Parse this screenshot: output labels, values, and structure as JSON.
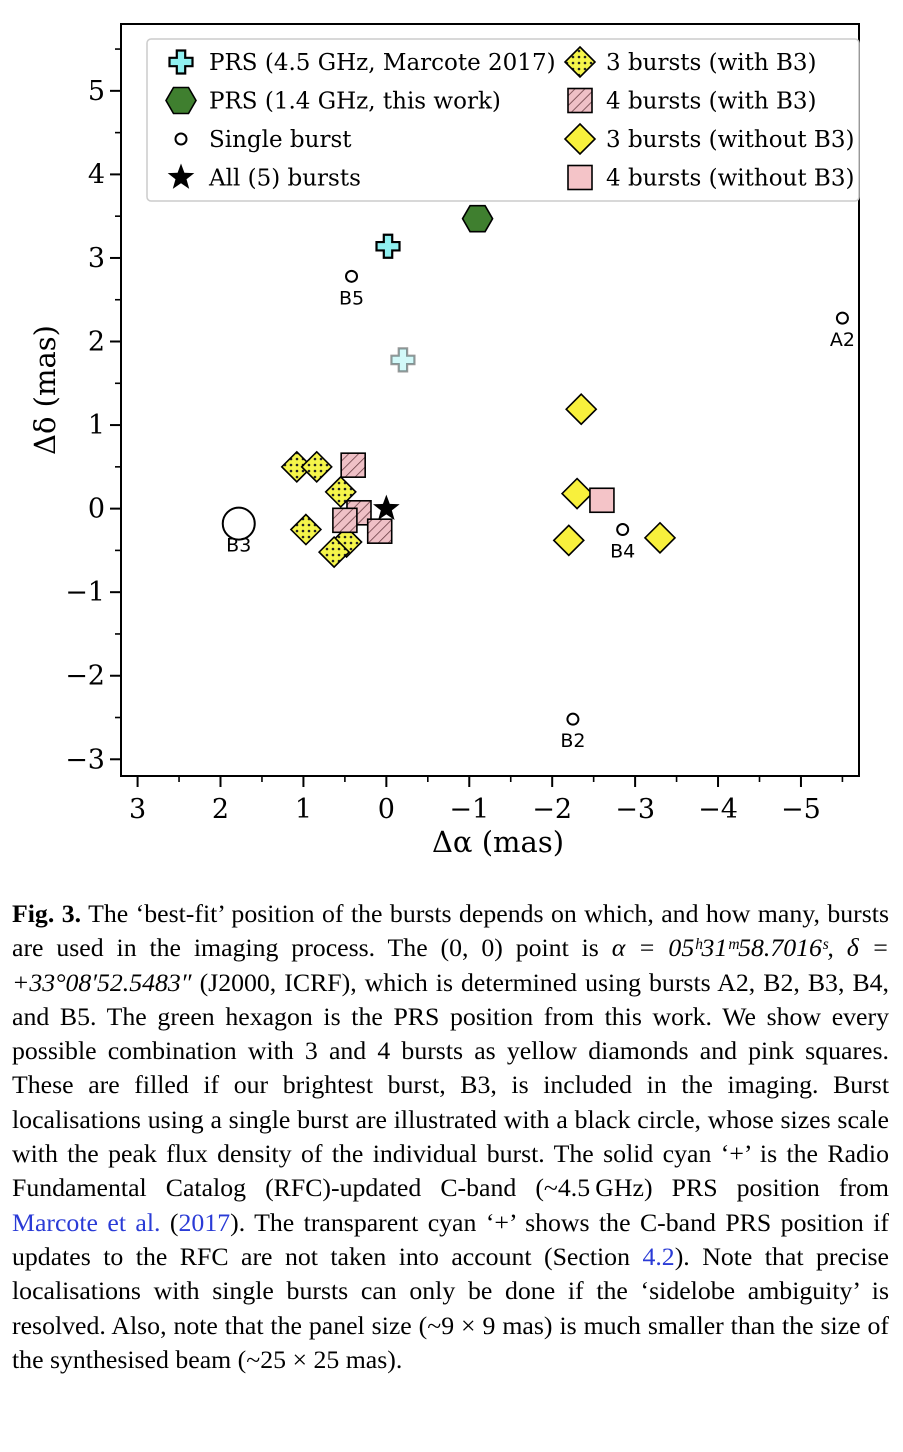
{
  "chart_data": {
    "type": "scatter",
    "title": "",
    "xlabel": "Δα (mas)",
    "ylabel": "Δδ (mas)",
    "xlim": [
      3.2,
      -5.7
    ],
    "ylim": [
      -3.2,
      5.8
    ],
    "x_inverted": true,
    "xticks": [
      3,
      2,
      1,
      0,
      -1,
      -2,
      -3,
      -4,
      -5
    ],
    "xtick_labels": [
      "3",
      "2",
      "1",
      "0",
      "−1",
      "−2",
      "−3",
      "−4",
      "−5"
    ],
    "yticks": [
      -3,
      -2,
      -1,
      0,
      1,
      2,
      3,
      4,
      5
    ],
    "ytick_labels": [
      "−3",
      "−2",
      "−1",
      "0",
      "1",
      "2",
      "3",
      "4",
      "5"
    ],
    "grid": false,
    "legend_position": "top",
    "series": [
      {
        "name": "PRS (4.5 GHz, Marcote 2017)",
        "marker": "plus",
        "color": "#8ff0f0",
        "points": [
          {
            "x": -0.02,
            "y": 3.14
          }
        ]
      },
      {
        "name": "PRS (4.5 GHz, without RFC updates)",
        "marker": "plus",
        "color": "#8ff0f0",
        "opacity": 0.4,
        "in_legend": false,
        "points": [
          {
            "x": -0.2,
            "y": 1.78
          }
        ]
      },
      {
        "name": "PRS (1.4 GHz, this work)",
        "marker": "hexagon",
        "color": "#3f7f2f",
        "points": [
          {
            "x": -1.1,
            "y": 3.47
          }
        ]
      },
      {
        "name": "Single burst",
        "marker": "circle",
        "color": "#ffffff",
        "points": [
          {
            "x": 1.78,
            "y": -0.18,
            "label": "B3",
            "size": "large"
          },
          {
            "x": 0.42,
            "y": 2.78,
            "label": "B5",
            "size": "small"
          },
          {
            "x": -5.5,
            "y": 2.28,
            "label": "A2",
            "size": "small"
          },
          {
            "x": -2.85,
            "y": -0.25,
            "label": "B4",
            "size": "small"
          },
          {
            "x": -2.25,
            "y": -2.52,
            "label": "B2",
            "size": "small"
          }
        ]
      },
      {
        "name": "All (5) bursts",
        "marker": "star",
        "color": "#000000",
        "points": [
          {
            "x": 0.0,
            "y": 0.0
          }
        ]
      },
      {
        "name": "3 bursts (with B3)",
        "marker": "diamond-dotted",
        "color": "#f5f54a",
        "points": [
          {
            "x": 1.08,
            "y": 0.5
          },
          {
            "x": 0.84,
            "y": 0.5
          },
          {
            "x": 0.55,
            "y": 0.2
          },
          {
            "x": 0.97,
            "y": -0.25
          },
          {
            "x": 0.48,
            "y": -0.4
          },
          {
            "x": 0.63,
            "y": -0.52
          }
        ]
      },
      {
        "name": "4 bursts (with B3)",
        "marker": "square-hatched",
        "color": "#efc0c6",
        "points": [
          {
            "x": 0.4,
            "y": 0.52
          },
          {
            "x": 0.33,
            "y": -0.05
          },
          {
            "x": 0.5,
            "y": -0.14
          },
          {
            "x": 0.08,
            "y": -0.27
          }
        ]
      },
      {
        "name": "3 bursts (without B3)",
        "marker": "diamond",
        "color": "#f8f03c",
        "points": [
          {
            "x": -2.35,
            "y": 1.19
          },
          {
            "x": -2.3,
            "y": 0.18
          },
          {
            "x": -2.2,
            "y": -0.38
          },
          {
            "x": -3.3,
            "y": -0.35
          }
        ]
      },
      {
        "name": "4 bursts (without B3)",
        "marker": "square",
        "color": "#f4c4c8",
        "points": [
          {
            "x": -2.6,
            "y": 0.1
          }
        ]
      }
    ],
    "legend": [
      {
        "label": "PRS (4.5 GHz, Marcote 2017)",
        "marker": "plus"
      },
      {
        "label": "PRS (1.4 GHz, this work)",
        "marker": "hexagon"
      },
      {
        "label": "Single burst",
        "marker": "circle"
      },
      {
        "label": "All (5) bursts",
        "marker": "star"
      },
      {
        "label": "3 bursts (with B3)",
        "marker": "diamond-dotted"
      },
      {
        "label": "4 bursts (with B3)",
        "marker": "square-hatched"
      },
      {
        "label": "3 bursts (without B3)",
        "marker": "diamond"
      },
      {
        "label": "4 bursts (without B3)",
        "marker": "square"
      }
    ]
  },
  "caption": {
    "label": "Fig. 3.",
    "s1": " The ‘best-fit’ position of the bursts depends on which, and how many, bursts are used in the imaging process. The (0, 0) point is ",
    "alpha_eq": "α = 05ʰ31ᵐ58.7016ˢ, δ = +33°08′52.5483″",
    "s2": " (J2000, ICRF), which is determined using bursts A2, B2, B3, B4, and B5. The green hexagon is the PRS position from this work. We show every possible combination with 3 and 4 bursts as yellow diamonds and pink squares. These are filled if our brightest burst, B3, is included in the imaging. Burst localisations using a single burst are illustrated with a black circle, whose sizes scale with the peak flux density of the individual burst. The solid cyan ‘+’ is the Radio Fundamental Catalog (RFC)-updated C-band (~4.5 GHz) PRS position from ",
    "ref1": "Marcote et al.",
    "s3": " (",
    "ref1_year": "2017",
    "s4": "). The transparent cyan ‘+’ shows the C-band PRS position if updates to the RFC are not taken into account (Section ",
    "section": "4.2",
    "s5": "). Note that precise localisations with single bursts can only be done if the ‘sidelobe ambiguity’ is resolved. Also, note that the panel size (~9 × 9 mas) is much smaller than the size of the synthesised beam (~25 × 25 mas)."
  }
}
